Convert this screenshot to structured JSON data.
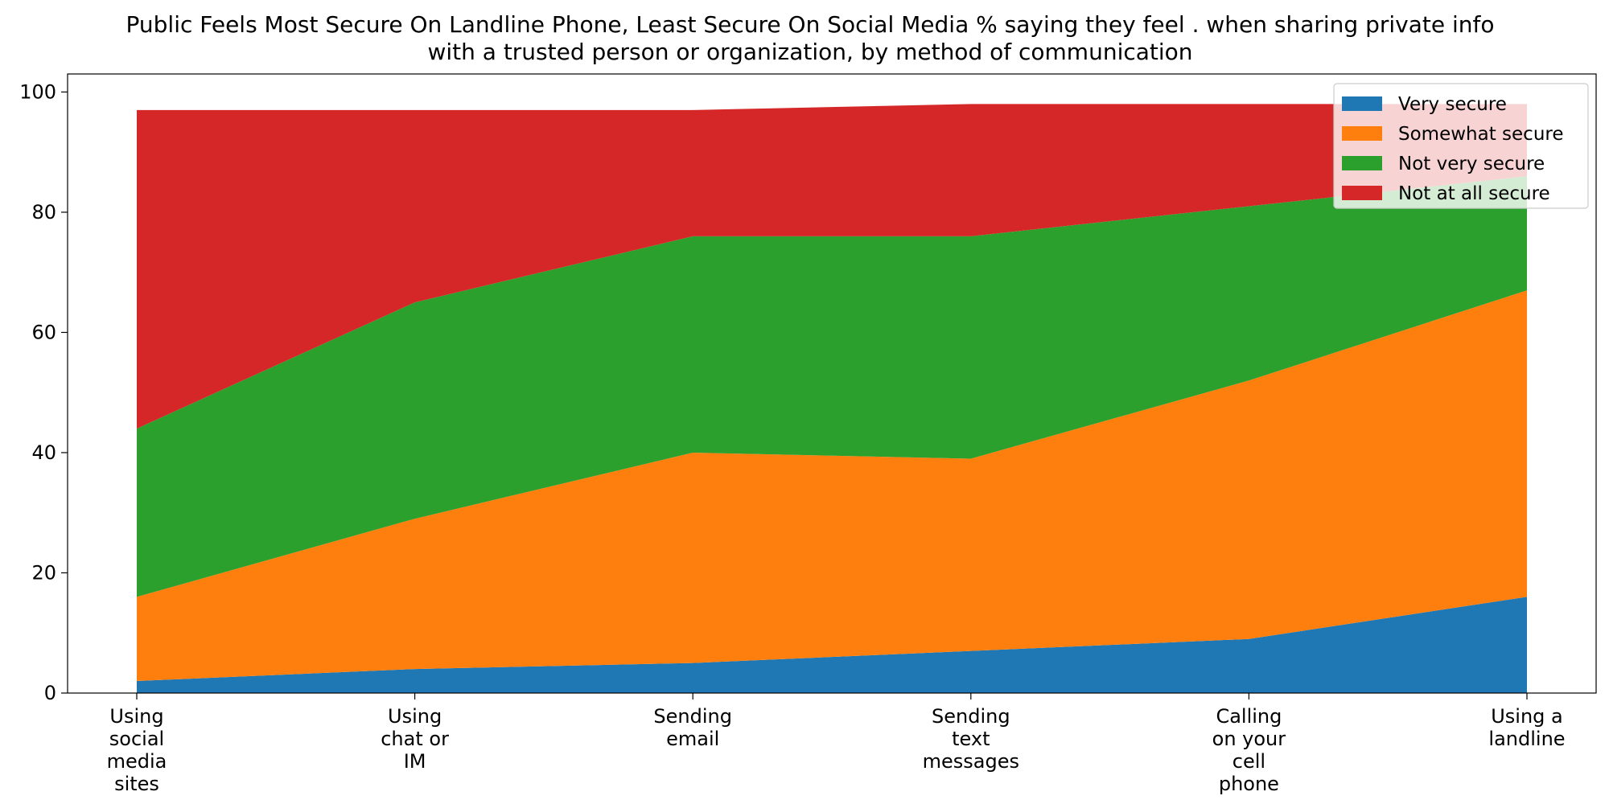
{
  "chart_data": {
    "type": "area",
    "stacked": true,
    "title": "Public Feels Most Secure On Landline Phone, Least Secure On Social Media % saying they feel . when sharing private info with a trusted person or organization, by method of communication",
    "title_lines": [
      "Public Feels Most Secure On Landline Phone, Least Secure On Social Media % saying they feel . when sharing private info",
      "with a trusted person or organization, by method of communication"
    ],
    "xlabel": "",
    "ylabel": "",
    "categories": [
      "Using social media sites",
      "Using chat or IM",
      "Sending email",
      "Sending text messages",
      "Calling on your cell phone",
      "Using a landline"
    ],
    "category_lines": [
      [
        "Using",
        "social",
        "media",
        "sites"
      ],
      [
        "Using",
        "chat or",
        "IM"
      ],
      [
        "Sending",
        "email"
      ],
      [
        "Sending",
        "text",
        "messages"
      ],
      [
        "Calling",
        "on your",
        "cell",
        "phone"
      ],
      [
        "Using a",
        "landline"
      ]
    ],
    "series": [
      {
        "name": "Very secure",
        "color": "#1f77b4",
        "values": [
          2,
          4,
          5,
          7,
          9,
          16
        ]
      },
      {
        "name": "Somewhat secure",
        "color": "#ff7f0e",
        "values": [
          14,
          25,
          35,
          32,
          43,
          51
        ]
      },
      {
        "name": "Not very secure",
        "color": "#2ca02c",
        "values": [
          28,
          36,
          36,
          37,
          29,
          19
        ]
      },
      {
        "name": "Not at all secure",
        "color": "#d62728",
        "values": [
          53,
          32,
          21,
          22,
          17,
          12
        ]
      }
    ],
    "ylim": [
      0,
      103
    ],
    "yticks": [
      0,
      20,
      40,
      60,
      80,
      100
    ],
    "grid": false,
    "legend_position": "top-right"
  }
}
